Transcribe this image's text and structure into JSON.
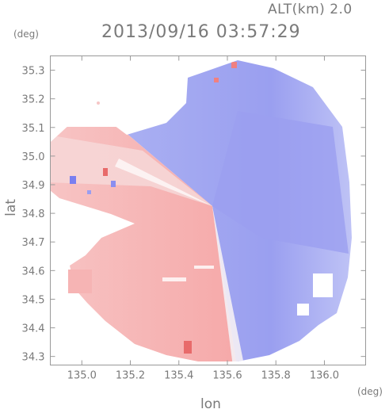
{
  "header": {
    "altitude": "ALT(km) 2.0",
    "timestamp": "2013/09/16 03:57:29"
  },
  "axes": {
    "y_unit": "(deg)",
    "x_unit": "(deg)",
    "xlabel": "lon",
    "ylabel": "lat",
    "x_ticks": [
      "135.0",
      "135.2",
      "135.4",
      "135.6",
      "135.8",
      "136.0"
    ],
    "y_ticks": [
      "35.3",
      "35.2",
      "35.1",
      "35.0",
      "34.9",
      "34.8",
      "34.7",
      "34.6",
      "34.5",
      "34.4",
      "34.3"
    ],
    "x_range": [
      134.87,
      136.17
    ],
    "y_range": [
      34.27,
      35.35
    ]
  },
  "map": {
    "type": "radar-doppler-velocity",
    "center": [
      135.52,
      34.82
    ],
    "colors": {
      "approaching": "#8b8bf0",
      "receding": "#f4a0a0",
      "frame": "#999999"
    }
  }
}
